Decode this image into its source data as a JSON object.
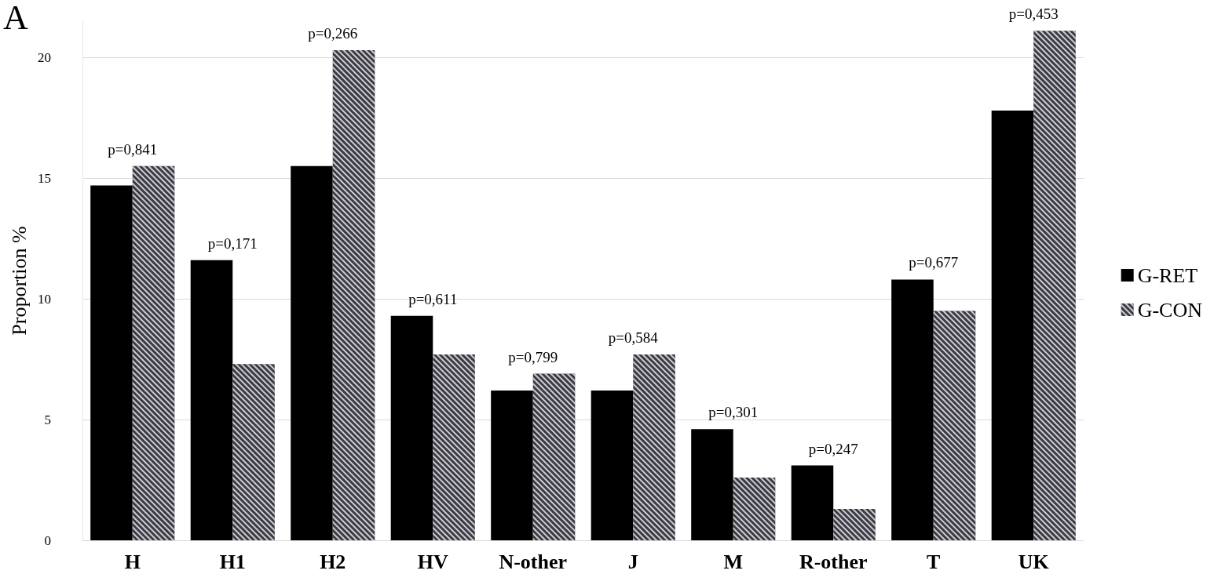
{
  "chart_data": {
    "type": "bar",
    "ylabel": "Proportion %",
    "categories": [
      "H",
      "H1",
      "H2",
      "HV",
      "N-other",
      "J",
      "M",
      "R-other",
      "T",
      "UK"
    ],
    "series": [
      {
        "name": "G-RET",
        "color": "#000000",
        "values": [
          14.7,
          11.6,
          15.5,
          9.3,
          6.2,
          6.2,
          4.6,
          3.1,
          10.8,
          17.8
        ]
      },
      {
        "name": "G-CON",
        "color": "#3b3b46",
        "values": [
          15.5,
          7.3,
          20.3,
          7.7,
          6.9,
          7.7,
          2.6,
          1.3,
          9.5,
          21.1
        ]
      }
    ],
    "ylim": [
      0,
      21.5
    ],
    "yticks": [
      0,
      5,
      10,
      15,
      20
    ],
    "grid": "y",
    "legend": "right",
    "annotations": [
      "A",
      {
        "text": "p=0,841",
        "x": "H",
        "y": 15.5
      },
      {
        "text": "p=0,171",
        "x": "H1",
        "y": 11.6
      },
      {
        "text": "p=0,266",
        "x": "H2",
        "y": 20.3
      },
      {
        "text": "p=0,611",
        "x": "HV",
        "y": 9.3
      },
      {
        "text": "p=0,799",
        "x": "N-other",
        "y": 6.9
      },
      {
        "text": "p=0,584",
        "x": "J",
        "y": 7.7
      },
      {
        "text": "p=0,301",
        "x": "M",
        "y": 4.6
      },
      {
        "text": "p=0,247",
        "x": "R-other",
        "y": 3.1
      },
      {
        "text": "p=0,677",
        "x": "T",
        "y": 10.8
      },
      {
        "text": "p=0,453",
        "x": "UK",
        "y": 21.1
      }
    ]
  }
}
